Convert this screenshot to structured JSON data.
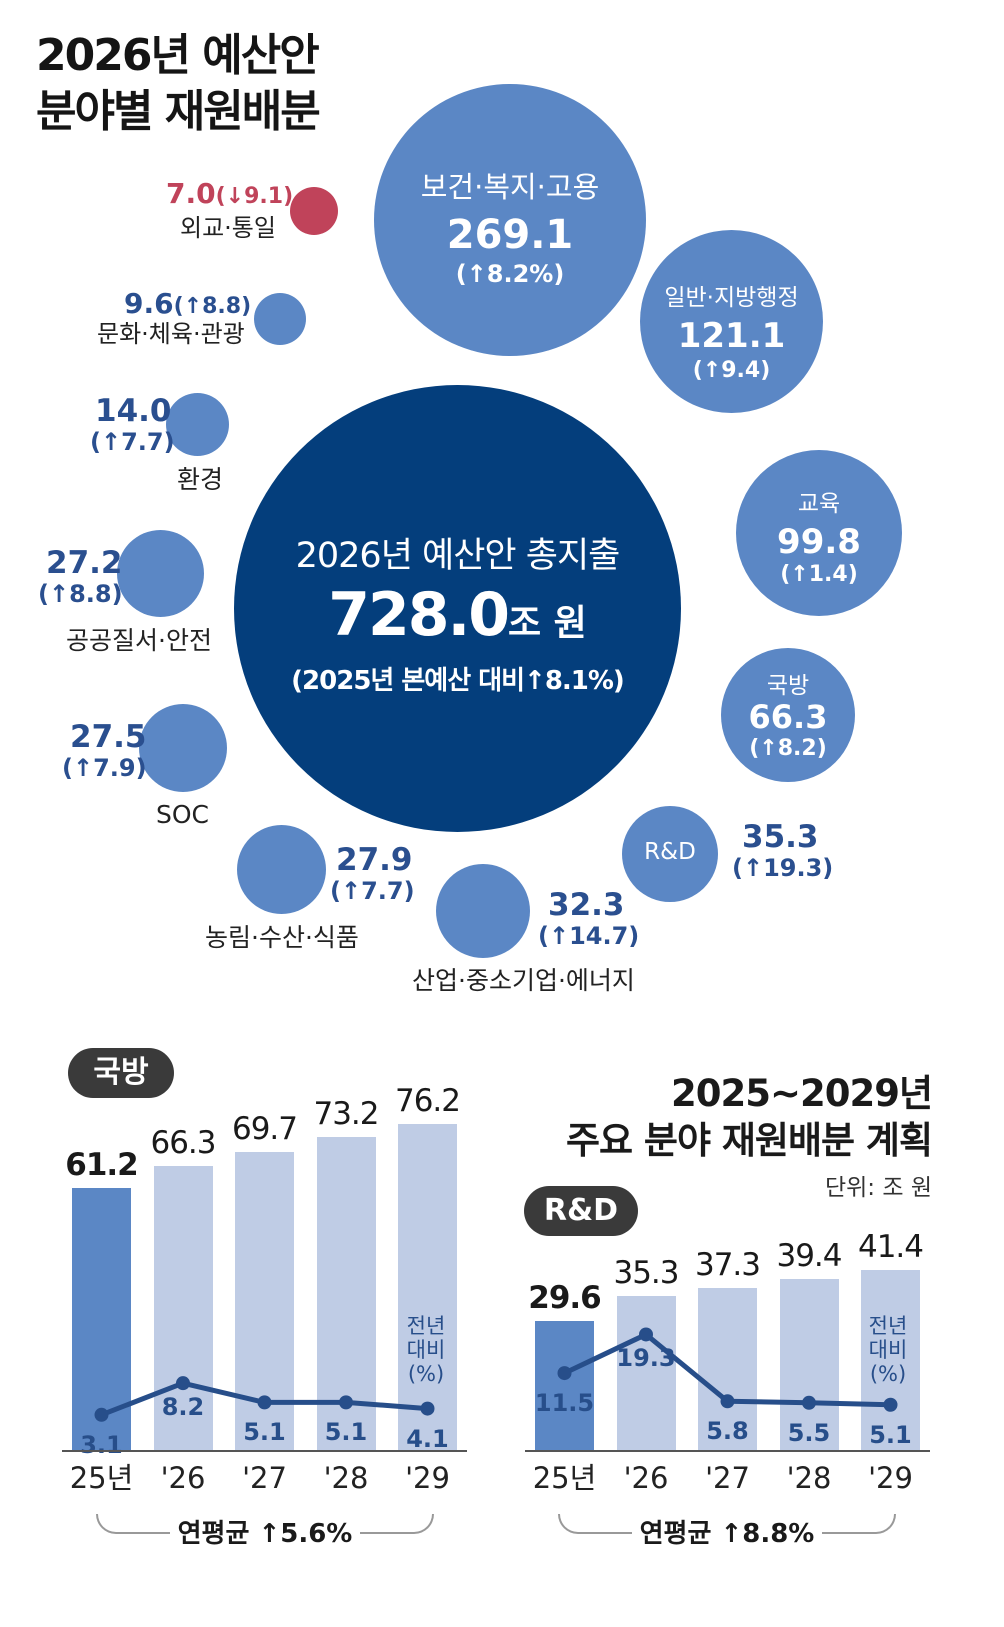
{
  "title": {
    "line1": "2026년 예산안",
    "line2": "분야별 재원배분"
  },
  "total": {
    "label": "2026년 예산안 총지출",
    "value": "728.0",
    "unit": "조 원",
    "change": "(2025년 본예산 대비↑8.1%)"
  },
  "sectors": [
    {
      "name": "보건·복지·고용",
      "value": 269.1,
      "value_text": "269.1",
      "change_text": "(↑8.2%)"
    },
    {
      "name": "일반·지방행정",
      "value": 121.1,
      "value_text": "121.1",
      "change_text": "(↑9.4)"
    },
    {
      "name": "교육",
      "value": 99.8,
      "value_text": "99.8",
      "change_text": "(↑1.4)"
    },
    {
      "name": "국방",
      "value": 66.3,
      "value_text": "66.3",
      "change_text": "(↑8.2)"
    },
    {
      "name": "R&D",
      "value": 35.3,
      "value_text": "35.3",
      "change_text": "(↑19.3)"
    },
    {
      "name": "산업·중소기업·에너지",
      "value": 32.3,
      "value_text": "32.3",
      "change_text": "(↑14.7)"
    },
    {
      "name": "농림·수산·식품",
      "value": 27.9,
      "value_text": "27.9",
      "change_text": "(↑7.7)"
    },
    {
      "name": "SOC",
      "value": 27.5,
      "value_text": "27.5",
      "change_text": "(↑7.9)"
    },
    {
      "name": "공공질서·안전",
      "value": 27.2,
      "value_text": "27.2",
      "change_text": "(↑8.8)"
    },
    {
      "name": "환경",
      "value": 14.0,
      "value_text": "14.0",
      "change_text": "(↑7.7)"
    },
    {
      "name": "문화·체육·관광",
      "value": 9.6,
      "value_text": "9.6",
      "change_text": "(↑8.8)"
    },
    {
      "name": "외교·통일",
      "value": 7.0,
      "value_text": "7.0",
      "change_text": "(↓9.1)"
    }
  ],
  "plan_title": {
    "line1": "2025~2029년",
    "line2": "주요 분야 재원배분 계획",
    "unit": "단위: 조 원"
  },
  "colors": {
    "dark_navy": "#043e7c",
    "bubble": "#5b87c5",
    "negative": "#c0435a",
    "bar_current": "#5b87c5",
    "bar_future": "#bfcce5",
    "line": "#274e8a"
  },
  "chart_data": [
    {
      "type": "bar",
      "title": "국방",
      "categories": [
        "25년",
        "'26",
        "'27",
        "'28",
        "'29"
      ],
      "values": [
        61.2,
        66.3,
        69.7,
        73.2,
        76.2
      ],
      "value_labels": [
        "61.2",
        "66.3",
        "69.7",
        "73.2",
        "76.2"
      ],
      "line_series": {
        "name": "전년 대비 (%)",
        "values": [
          3.1,
          8.2,
          5.1,
          5.1,
          4.1
        ],
        "labels": [
          "3.1",
          "8.2",
          "5.1",
          "5.1",
          "4.1"
        ]
      },
      "line_legend": [
        "전년",
        "대비",
        "(%)"
      ],
      "footer": "연평균 ↑5.6%"
    },
    {
      "type": "bar",
      "title": "R&D",
      "categories": [
        "25년",
        "'26",
        "'27",
        "'28",
        "'29"
      ],
      "values": [
        29.6,
        35.3,
        37.3,
        39.4,
        41.4
      ],
      "value_labels": [
        "29.6",
        "35.3",
        "37.3",
        "39.4",
        "41.4"
      ],
      "line_series": {
        "name": "전년 대비 (%)",
        "values": [
          11.5,
          19.3,
          5.8,
          5.5,
          5.1
        ],
        "labels": [
          "11.5",
          "19.3",
          "5.8",
          "5.5",
          "5.1"
        ]
      },
      "line_legend": [
        "전년",
        "대비",
        "(%)"
      ],
      "footer": "연평균 ↑8.8%"
    }
  ]
}
